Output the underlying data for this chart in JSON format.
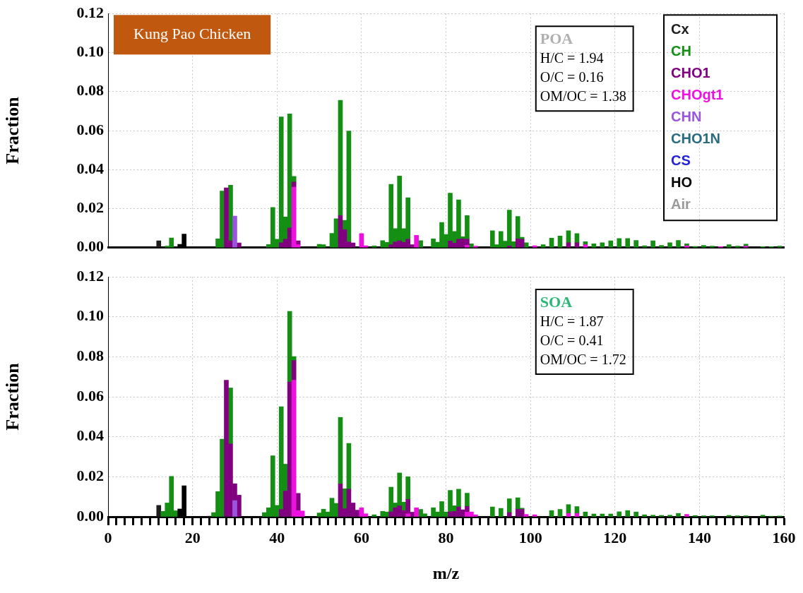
{
  "chart_data": [
    {
      "type": "bar",
      "stacked": true,
      "ylabel": "Fraction",
      "xlim": [
        0,
        160
      ],
      "xticks": [
        0,
        20,
        40,
        60,
        80,
        100,
        120,
        140,
        160
      ],
      "ylim": [
        0,
        0.12
      ],
      "yticks": [
        {
          "value": 0,
          "label": "0.00"
        },
        {
          "value": 0.02,
          "label": "0.02"
        },
        {
          "value": 0.04,
          "label": "0.04"
        },
        {
          "value": 0.06,
          "label": "0.06"
        },
        {
          "value": 0.08,
          "label": "0.08"
        },
        {
          "value": 0.1,
          "label": "0.10"
        },
        {
          "value": 0.12,
          "label": "0.12"
        }
      ],
      "grid": true,
      "legend": "top right",
      "tick_labels": "y",
      "annotations": [
        "Kung Pao Chicken",
        "POA",
        "H/C = 1.94",
        "O/C = 0.16",
        "OM/OC = 1.38"
      ],
      "x": [
        12,
        14,
        15,
        17,
        18,
        24,
        26,
        27,
        28,
        29,
        30,
        31,
        38,
        39,
        40,
        41,
        42,
        43,
        44,
        45,
        50,
        51,
        53,
        54,
        55,
        56,
        57,
        58,
        60,
        61,
        63,
        65,
        66,
        67,
        68,
        69,
        70,
        71,
        72,
        73,
        74,
        77,
        78,
        79,
        80,
        81,
        82,
        83,
        84,
        85,
        86,
        87,
        91,
        92,
        93,
        94,
        95,
        96,
        97,
        98,
        99,
        101,
        103,
        105,
        107,
        109,
        111,
        113,
        115,
        117,
        119,
        121,
        123,
        125,
        127,
        129,
        131,
        133,
        135,
        137,
        139,
        141,
        143,
        145,
        147,
        149,
        151,
        155,
        157,
        159
      ],
      "series": [
        {
          "name": "Air",
          "color": "#999999",
          "values": [
            null,
            null,
            null,
            null,
            null,
            null,
            null,
            null,
            null,
            null,
            null,
            null,
            null,
            null,
            null,
            null,
            null,
            null,
            null,
            null,
            null,
            null,
            null,
            null,
            null,
            null,
            null,
            null,
            null,
            null,
            null,
            null,
            null,
            null,
            null,
            null,
            null,
            null,
            null,
            null,
            null,
            null,
            null,
            null,
            null,
            null,
            null,
            null,
            null,
            null,
            null,
            null,
            null,
            null,
            null,
            null,
            null,
            null,
            null,
            null,
            null,
            null,
            null,
            null,
            null,
            null,
            null,
            null,
            null,
            null,
            null,
            null,
            null,
            null,
            null,
            null,
            null,
            null,
            null,
            null,
            null,
            null,
            null,
            null,
            null,
            null,
            null,
            null,
            null,
            null
          ]
        },
        {
          "name": "HO",
          "color": "#000000",
          "values": [
            null,
            null,
            null,
            0.0017,
            0.007,
            null,
            null,
            null,
            null,
            null,
            null,
            null,
            null,
            null,
            null,
            null,
            null,
            null,
            null,
            null,
            null,
            null,
            null,
            null,
            null,
            null,
            null,
            null,
            null,
            null,
            null,
            null,
            null,
            null,
            null,
            null,
            null,
            null,
            null,
            null,
            null,
            null,
            null,
            null,
            null,
            null,
            null,
            null,
            null,
            null,
            null,
            null,
            null,
            null,
            null,
            null,
            null,
            null,
            null,
            null,
            null,
            null,
            null,
            null,
            null,
            null,
            null,
            null,
            null,
            null,
            null,
            null,
            null,
            null,
            null,
            null,
            null,
            null,
            null,
            null,
            null,
            null,
            null,
            null,
            null,
            null,
            null,
            null,
            null,
            null
          ]
        },
        {
          "name": "CS",
          "color": "#2222dd",
          "values": [
            null,
            null,
            null,
            null,
            null,
            null,
            null,
            null,
            null,
            null,
            null,
            null,
            null,
            null,
            null,
            null,
            null,
            null,
            null,
            null,
            null,
            null,
            null,
            null,
            null,
            null,
            null,
            null,
            null,
            null,
            null,
            null,
            null,
            null,
            null,
            null,
            null,
            null,
            null,
            null,
            null,
            null,
            null,
            null,
            null,
            null,
            null,
            null,
            null,
            null,
            null,
            null,
            null,
            null,
            null,
            null,
            null,
            null,
            null,
            null,
            null,
            null,
            null,
            null,
            null,
            null,
            null,
            null,
            null,
            null,
            null,
            null,
            null,
            null,
            null,
            null,
            null,
            null,
            null,
            null,
            null,
            null,
            null,
            null,
            null,
            null,
            null,
            null,
            null,
            null
          ]
        },
        {
          "name": "CHO1N",
          "color": "#2a6b80",
          "values": [
            null,
            null,
            null,
            null,
            null,
            null,
            null,
            null,
            null,
            null,
            null,
            null,
            null,
            null,
            null,
            null,
            null,
            null,
            null,
            null,
            null,
            null,
            null,
            null,
            null,
            null,
            null,
            null,
            null,
            null,
            null,
            null,
            null,
            null,
            null,
            null,
            null,
            null,
            null,
            null,
            null,
            null,
            null,
            null,
            null,
            null,
            null,
            null,
            null,
            null,
            null,
            null,
            null,
            null,
            null,
            null,
            null,
            null,
            null,
            null,
            null,
            null,
            null,
            null,
            null,
            null,
            null,
            null,
            null,
            null,
            null,
            null,
            null,
            null,
            null,
            null,
            null,
            null,
            null,
            null,
            null,
            null,
            null,
            null,
            null,
            null,
            null,
            null,
            null,
            null
          ]
        },
        {
          "name": "CHN",
          "color": "#9955dd",
          "values": [
            null,
            null,
            null,
            null,
            null,
            null,
            null,
            null,
            null,
            null,
            0.0162,
            null,
            null,
            null,
            null,
            null,
            null,
            null,
            null,
            null,
            null,
            null,
            null,
            null,
            null,
            null,
            null,
            null,
            null,
            null,
            null,
            null,
            null,
            null,
            null,
            null,
            null,
            null,
            null,
            null,
            null,
            null,
            null,
            null,
            null,
            null,
            null,
            null,
            null,
            null,
            null,
            null,
            null,
            null,
            null,
            null,
            null,
            null,
            null,
            null,
            null,
            null,
            null,
            null,
            null,
            null,
            null,
            null,
            null,
            null,
            null,
            null,
            null,
            null,
            null,
            null,
            null,
            null,
            null,
            null,
            null,
            null,
            null,
            null,
            null,
            null,
            null,
            null,
            null,
            null
          ]
        },
        {
          "name": "CHOgt1",
          "color": "#ee10e0",
          "values": [
            null,
            null,
            null,
            null,
            null,
            null,
            null,
            null,
            null,
            null,
            null,
            null,
            null,
            null,
            null,
            null,
            null,
            null,
            0.031,
            0.0015,
            null,
            null,
            null,
            null,
            null,
            null,
            null,
            null,
            0.0072,
            0.001,
            null,
            null,
            null,
            null,
            null,
            null,
            null,
            null,
            null,
            0.0063,
            null,
            null,
            null,
            null,
            null,
            null,
            null,
            null,
            null,
            0.0013,
            null,
            0.0008,
            null,
            null,
            null,
            null,
            null,
            null,
            null,
            null,
            null,
            0.001,
            null,
            null,
            null,
            null,
            null,
            0.0015,
            null,
            null,
            null,
            null,
            null,
            null,
            null,
            null,
            null,
            null,
            null,
            0.001,
            null,
            null,
            null,
            0.0005,
            null,
            null,
            0.0008,
            null,
            null,
            null
          ]
        },
        {
          "name": "CHO1",
          "color": "#800080",
          "values": [
            null,
            null,
            null,
            null,
            null,
            null,
            null,
            null,
            0.0307,
            0.0035,
            null,
            0.0024,
            null,
            null,
            null,
            0.0025,
            0.0043,
            0.0101,
            0.0026,
            0.002,
            null,
            null,
            null,
            null,
            0.0165,
            0.0092,
            0.003,
            0.0024,
            null,
            null,
            null,
            null,
            null,
            0.0015,
            0.003,
            0.0035,
            0.0027,
            0.0043,
            0.0015,
            null,
            null,
            null,
            null,
            null,
            null,
            0.0034,
            0.0023,
            0.0043,
            0.0045,
            0.003,
            null,
            null,
            null,
            null,
            null,
            null,
            0.0009,
            null,
            0.0045,
            0.0043,
            null,
            null,
            null,
            null,
            null,
            0.0025,
            0.0025,
            null,
            null,
            null,
            null,
            null,
            null,
            null,
            null,
            null,
            null,
            null,
            null,
            null,
            null,
            null,
            null,
            null,
            null,
            null,
            null,
            null,
            null,
            null
          ]
        },
        {
          "name": "CH",
          "color": "#148f14",
          "values": [
            null,
            0.0008,
            0.005,
            null,
            null,
            null,
            0.0045,
            0.029,
            null,
            0.0285,
            null,
            null,
            0.0016,
            0.0206,
            0.0043,
            0.0645,
            0.0114,
            0.0585,
            0.0029,
            null,
            0.0017,
            0.0015,
            0.0073,
            0.0148,
            0.059,
            0.0048,
            0.0568,
            null,
            null,
            null,
            0.0009,
            0.0036,
            0.0027,
            0.031,
            0.0068,
            0.0332,
            0.0071,
            0.0213,
            null,
            null,
            0.0036,
            0.0045,
            0.0028,
            0.0129,
            0.0068,
            0.0245,
            0.006,
            0.0202,
            0.0011,
            0.0122,
            0.002,
            null,
            0.0087,
            0.0015,
            0.0083,
            0.0033,
            0.0184,
            0.0031,
            0.0115,
            0.001,
            0.0025,
            null,
            0.0015,
            0.0049,
            0.006,
            0.0062,
            0.0047,
            0.0016,
            0.002,
            0.0025,
            0.0035,
            0.0047,
            0.0047,
            0.0037,
            0.001,
            0.0035,
            0.0012,
            0.0025,
            0.0037,
            0.001,
            0.0006,
            0.0012,
            0.0008,
            null,
            0.0015,
            0.0008,
            0.001,
            0.0005,
            0.0005,
            0.0008
          ]
        },
        {
          "name": "Cx",
          "color": "#1e1e1e",
          "values": [
            0.0035,
            null,
            null,
            null,
            null,
            null,
            null,
            null,
            null,
            null,
            null,
            null,
            null,
            null,
            null,
            null,
            null,
            null,
            null,
            null,
            null,
            null,
            null,
            null,
            null,
            null,
            null,
            null,
            null,
            null,
            null,
            null,
            null,
            null,
            null,
            null,
            null,
            null,
            null,
            null,
            null,
            null,
            null,
            null,
            null,
            null,
            null,
            null,
            null,
            null,
            null,
            null,
            null,
            null,
            null,
            null,
            null,
            null,
            null,
            null,
            null,
            null,
            null,
            null,
            null,
            null,
            null,
            null,
            null,
            null,
            null,
            null,
            null,
            null,
            null,
            null,
            null,
            null,
            null,
            null,
            null,
            null,
            null,
            null,
            null,
            null,
            null,
            null,
            null,
            null
          ]
        }
      ]
    },
    {
      "type": "bar",
      "stacked": true,
      "xlabel": "m/z",
      "ylabel": "Fraction",
      "xlim": [
        0,
        160
      ],
      "xticks": [
        0,
        {
          "value": 2,
          "label": null
        },
        {
          "value": 4,
          "label": null
        },
        {
          "value": 6,
          "label": null
        },
        {
          "value": 8,
          "label": null
        },
        {
          "value": 10,
          "label": null
        },
        {
          "value": 12,
          "label": null
        },
        {
          "value": 14,
          "label": null
        },
        {
          "value": 16,
          "label": null
        },
        {
          "value": 18,
          "label": null
        },
        20,
        {
          "value": 22,
          "label": null
        },
        {
          "value": 24,
          "label": null
        },
        {
          "value": 26,
          "label": null
        },
        {
          "value": 28,
          "label": null
        },
        {
          "value": 30,
          "label": null
        },
        {
          "value": 32,
          "label": null
        },
        {
          "value": 34,
          "label": null
        },
        {
          "value": 36,
          "label": null
        },
        {
          "value": 38,
          "label": null
        },
        40,
        {
          "value": 42,
          "label": null
        },
        {
          "value": 44,
          "label": null
        },
        {
          "value": 46,
          "label": null
        },
        {
          "value": 48,
          "label": null
        },
        {
          "value": 50,
          "label": null
        },
        {
          "value": 52,
          "label": null
        },
        {
          "value": 54,
          "label": null
        },
        {
          "value": 56,
          "label": null
        },
        {
          "value": 58,
          "label": null
        },
        60,
        {
          "value": 62,
          "label": null
        },
        {
          "value": 64,
          "label": null
        },
        {
          "value": 66,
          "label": null
        },
        {
          "value": 68,
          "label": null
        },
        {
          "value": 70,
          "label": null
        },
        {
          "value": 72,
          "label": null
        },
        {
          "value": 74,
          "label": null
        },
        {
          "value": 76,
          "label": null
        },
        {
          "value": 78,
          "label": null
        },
        80,
        {
          "value": 82,
          "label": null
        },
        {
          "value": 84,
          "label": null
        },
        {
          "value": 86,
          "label": null
        },
        {
          "value": 88,
          "label": null
        },
        {
          "value": 90,
          "label": null
        },
        {
          "value": 92,
          "label": null
        },
        {
          "value": 94,
          "label": null
        },
        {
          "value": 96,
          "label": null
        },
        {
          "value": 98,
          "label": null
        },
        100,
        {
          "value": 102,
          "label": null
        },
        {
          "value": 104,
          "label": null
        },
        {
          "value": 106,
          "label": null
        },
        {
          "value": 108,
          "label": null
        },
        {
          "value": 110,
          "label": null
        },
        {
          "value": 112,
          "label": null
        },
        {
          "value": 114,
          "label": null
        },
        {
          "value": 116,
          "label": null
        },
        {
          "value": 118,
          "label": null
        },
        120,
        {
          "value": 122,
          "label": null
        },
        {
          "value": 124,
          "label": null
        },
        {
          "value": 126,
          "label": null
        },
        {
          "value": 128,
          "label": null
        },
        {
          "value": 130,
          "label": null
        },
        {
          "value": 132,
          "label": null
        },
        {
          "value": 134,
          "label": null
        },
        {
          "value": 136,
          "label": null
        },
        {
          "value": 138,
          "label": null
        },
        140,
        {
          "value": 142,
          "label": null
        },
        {
          "value": 144,
          "label": null
        },
        {
          "value": 146,
          "label": null
        },
        {
          "value": 148,
          "label": null
        },
        {
          "value": 150,
          "label": null
        },
        {
          "value": 152,
          "label": null
        },
        {
          "value": 154,
          "label": null
        },
        {
          "value": 156,
          "label": null
        },
        {
          "value": 158,
          "label": null
        },
        160
      ],
      "ylim": [
        0,
        0.12
      ],
      "yticks": [
        {
          "value": 0,
          "label": "0.00"
        },
        {
          "value": 0.02,
          "label": "0.02"
        },
        {
          "value": 0.04,
          "label": "0.04"
        },
        {
          "value": 0.06,
          "label": "0.06"
        },
        {
          "value": 0.08,
          "label": "0.08"
        },
        {
          "value": 0.1,
          "label": "0.10"
        },
        {
          "value": 0.12,
          "label": "0.12"
        }
      ],
      "grid": true,
      "annotations": [
        "SOA",
        "H/C = 1.87",
        "O/C = 0.41",
        "OM/OC = 1.72"
      ],
      "x": [
        12,
        13,
        14,
        15,
        16,
        17,
        18,
        24,
        25,
        26,
        27,
        28,
        29,
        30,
        31,
        37,
        38,
        39,
        40,
        41,
        42,
        43,
        44,
        45,
        46,
        50,
        51,
        52,
        53,
        54,
        55,
        56,
        57,
        58,
        59,
        60,
        61,
        63,
        65,
        66,
        67,
        68,
        69,
        70,
        71,
        72,
        73,
        74,
        75,
        77,
        78,
        79,
        80,
        81,
        82,
        83,
        84,
        85,
        86,
        87,
        91,
        93,
        95,
        97,
        98,
        99,
        101,
        105,
        107,
        109,
        111,
        113,
        115,
        117,
        119,
        121,
        123,
        125,
        127,
        129,
        131,
        133,
        135,
        137,
        139,
        141,
        143,
        147,
        149,
        151,
        155,
        157,
        159
      ],
      "series": [
        {
          "color": "#000000",
          "values": [
            null,
            null,
            null,
            null,
            null,
            0.0039,
            0.0155,
            null,
            null,
            null,
            null,
            null,
            null,
            null,
            null,
            null,
            null,
            null,
            null,
            null,
            null,
            null,
            null,
            null,
            null,
            null,
            null,
            null,
            null,
            null,
            null,
            null,
            null,
            null,
            null,
            null,
            null,
            null,
            null,
            null,
            null,
            null,
            null,
            null,
            null,
            null,
            null,
            null,
            null,
            null,
            null,
            null,
            null,
            null,
            null,
            null,
            null,
            null,
            null,
            null,
            null,
            null,
            null,
            null,
            null,
            null,
            null,
            null,
            null,
            null,
            null,
            null,
            null,
            null,
            null,
            null,
            null,
            null,
            null,
            null,
            null,
            null,
            null,
            null,
            null,
            null,
            null,
            null,
            null,
            null,
            null,
            null,
            null
          ]
        },
        {
          "color": "#9955dd",
          "values": [
            null,
            null,
            null,
            null,
            null,
            null,
            null,
            null,
            null,
            null,
            null,
            null,
            null,
            0.0081,
            null,
            null,
            null,
            null,
            null,
            null,
            null,
            null,
            null,
            null,
            null,
            null,
            null,
            null,
            null,
            null,
            null,
            null,
            null,
            null,
            null,
            null,
            null,
            null,
            null,
            null,
            null,
            null,
            null,
            null,
            null,
            null,
            null,
            null,
            null,
            null,
            null,
            null,
            null,
            null,
            null,
            null,
            null,
            null,
            null,
            null,
            null,
            null,
            null,
            null,
            null,
            null,
            null,
            null,
            null,
            null,
            null,
            null,
            null,
            null,
            null,
            null,
            null,
            null,
            null,
            null,
            null,
            null,
            null,
            null,
            null,
            null,
            null,
            null,
            null,
            null,
            null,
            null,
            null
          ]
        },
        {
          "color": "#ee10e0",
          "values": [
            null,
            null,
            null,
            null,
            null,
            null,
            null,
            null,
            null,
            null,
            null,
            null,
            null,
            null,
            null,
            null,
            null,
            null,
            null,
            null,
            null,
            null,
            0.0683,
            0.0031,
            0.0029,
            null,
            null,
            null,
            null,
            null,
            null,
            null,
            null,
            null,
            null,
            0.0045,
            0.0015,
            null,
            null,
            null,
            null,
            null,
            null,
            null,
            0.0015,
            null,
            0.0045,
            null,
            null,
            null,
            null,
            null,
            null,
            null,
            null,
            null,
            null,
            0.0023,
            0.0024,
            0.001,
            null,
            null,
            null,
            null,
            null,
            0.0012,
            0.001,
            null,
            null,
            0.0017,
            0.0017,
            null,
            null,
            null,
            null,
            null,
            null,
            null,
            null,
            null,
            null,
            null,
            null,
            0.0012,
            null,
            null,
            null,
            null,
            null,
            null,
            null,
            null,
            null
          ]
        },
        {
          "color": "#800080",
          "values": [
            null,
            null,
            null,
            null,
            null,
            null,
            null,
            null,
            null,
            null,
            null,
            0.0683,
            0.0364,
            0.0084,
            0.0108,
            null,
            null,
            null,
            null,
            0.0037,
            0.0129,
            0.0674,
            0.0098,
            0.0086,
            null,
            null,
            null,
            null,
            null,
            null,
            0.0164,
            0.004,
            0.0138,
            0.0069,
            0.0033,
            null,
            null,
            null,
            null,
            null,
            0.0025,
            0.0045,
            0.0055,
            0.0031,
            0.0072,
            0.0023,
            null,
            null,
            null,
            null,
            null,
            null,
            null,
            0.0025,
            0.0027,
            0.0049,
            0.0035,
            0.0029,
            null,
            null,
            null,
            null,
            0.0021,
            0.0038,
            0.0037,
            null,
            null,
            null,
            null,
            null,
            null,
            null,
            null,
            null,
            null,
            null,
            null,
            null,
            null,
            null,
            null,
            null,
            null,
            null,
            null,
            null,
            null,
            null,
            null,
            null,
            null,
            null,
            null
          ]
        },
        {
          "color": "#148f14",
          "values": [
            null,
            0.0027,
            0.0069,
            0.0202,
            0.003,
            null,
            null,
            null,
            0.0021,
            0.0126,
            0.0388,
            null,
            0.028,
            null,
            null,
            0.0021,
            0.0045,
            0.0305,
            0.0057,
            0.0513,
            0.0134,
            0.0353,
            0.002,
            null,
            null,
            0.0019,
            0.0038,
            0.0024,
            0.0093,
            0.0067,
            0.0333,
            0.01,
            0.0229,
            null,
            null,
            null,
            null,
            0.001,
            0.0027,
            0.0024,
            0.0123,
            0.0024,
            0.0164,
            0.0042,
            0.0113,
            null,
            null,
            0.0037,
            0.0015,
            0.0045,
            0.0024,
            0.0076,
            0.0024,
            0.0107,
            0.0028,
            0.0089,
            null,
            0.0066,
            null,
            null,
            0.0049,
            0.0042,
            0.0069,
            0.0057,
            0.0006,
            null,
            null,
            0.0031,
            0.0037,
            0.0044,
            0.0034,
            0.0024,
            0.0014,
            0.0014,
            0.0014,
            0.0025,
            0.0031,
            0.0024,
            0.001,
            0.0008,
            0.0007,
            0.0008,
            0.0017,
            null,
            0.0006,
            0.0005,
            0.0005,
            0.0007,
            0.0005,
            0.0005,
            0.0008,
            0.0003,
            0.0004
          ]
        },
        {
          "color": "#1e1e1e",
          "values": [
            0.0057,
            null,
            null,
            null,
            null,
            null,
            null,
            0.0003,
            null,
            null,
            null,
            null,
            null,
            null,
            null,
            null,
            null,
            null,
            null,
            null,
            null,
            null,
            null,
            null,
            null,
            null,
            null,
            null,
            null,
            null,
            null,
            null,
            null,
            null,
            null,
            null,
            null,
            null,
            null,
            null,
            null,
            null,
            null,
            null,
            null,
            null,
            null,
            null,
            null,
            null,
            null,
            null,
            null,
            null,
            null,
            null,
            null,
            null,
            null,
            null,
            null,
            null,
            null,
            null,
            null,
            null,
            null,
            null,
            null,
            null,
            null,
            null,
            null,
            null,
            null,
            null,
            null,
            null,
            null,
            null,
            null,
            null,
            null,
            null,
            null,
            null,
            null,
            null,
            null,
            null,
            null,
            null,
            null
          ]
        }
      ]
    }
  ]
}
